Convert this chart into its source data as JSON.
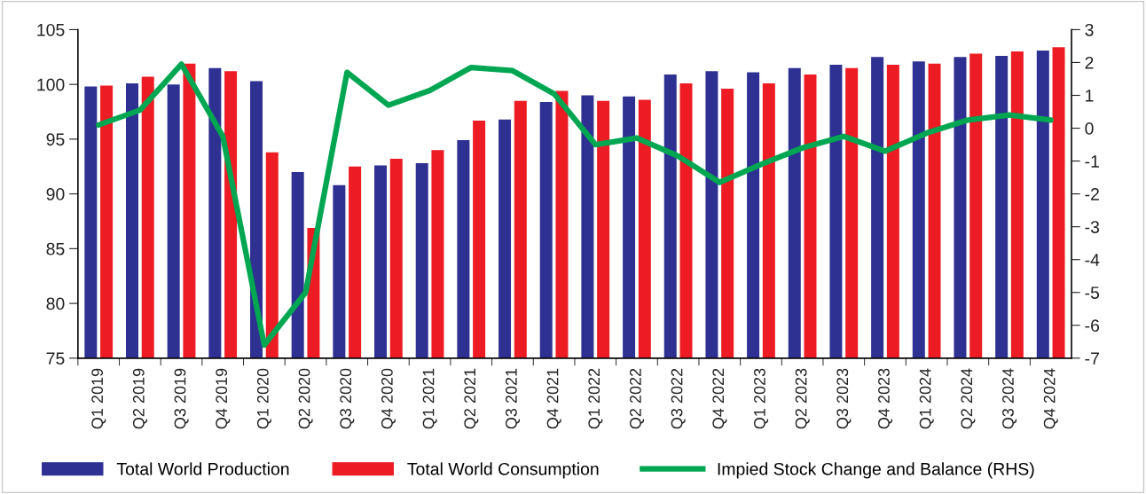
{
  "chart_data": {
    "type": "bar",
    "categories": [
      "Q1 2019",
      "Q2 2019",
      "Q3 2019",
      "Q4 2019",
      "Q1 2020",
      "Q2 2020",
      "Q3 2020",
      "Q4 2020",
      "Q1 2021",
      "Q2 2021",
      "Q3 2021",
      "Q4 2021",
      "Q1 2022",
      "Q2 2022",
      "Q3 2022",
      "Q4 2022",
      "Q1 2023",
      "Q2 2023",
      "Q3 2023",
      "Q4 2023",
      "Q1 2024",
      "Q2 2024",
      "Q3 2024",
      "Q4 2024"
    ],
    "series": [
      {
        "name": "Total World Production",
        "color": "#2e3192",
        "values": [
          99.8,
          100.1,
          100.0,
          101.5,
          100.3,
          92.0,
          90.8,
          92.6,
          92.8,
          94.9,
          96.8,
          98.4,
          99.0,
          98.9,
          100.9,
          101.2,
          101.1,
          101.5,
          101.8,
          102.5,
          102.1,
          102.5,
          102.6,
          103.1
        ]
      },
      {
        "name": "Total World Consumption",
        "color": "#ed1c24",
        "values": [
          99.9,
          100.7,
          101.9,
          101.2,
          93.8,
          86.9,
          92.5,
          93.2,
          94.0,
          96.7,
          98.5,
          99.4,
          98.5,
          98.6,
          100.1,
          99.6,
          100.1,
          100.9,
          101.5,
          101.8,
          101.9,
          102.8,
          103.0,
          103.4
        ]
      },
      {
        "name": "Impied Stock Change and Balance (RHS)",
        "color": "#00a651",
        "type": "line",
        "axis": "y2",
        "values": [
          0.1,
          0.55,
          1.95,
          -0.25,
          -6.6,
          -5.0,
          1.7,
          0.7,
          1.15,
          1.85,
          1.75,
          1.05,
          -0.5,
          -0.3,
          -0.85,
          -1.65,
          -1.1,
          -0.6,
          -0.25,
          -0.7,
          -0.15,
          0.25,
          0.4,
          0.25
        ]
      }
    ],
    "ylim": [
      75,
      105
    ],
    "yticks": [
      75,
      80,
      85,
      90,
      95,
      100,
      105
    ],
    "y2lim": [
      -7,
      3
    ],
    "y2ticks": [
      -7,
      -6,
      -5,
      -4,
      -3,
      -2,
      -1,
      0,
      1,
      2,
      3
    ],
    "grid": false,
    "legend": "bottom"
  }
}
